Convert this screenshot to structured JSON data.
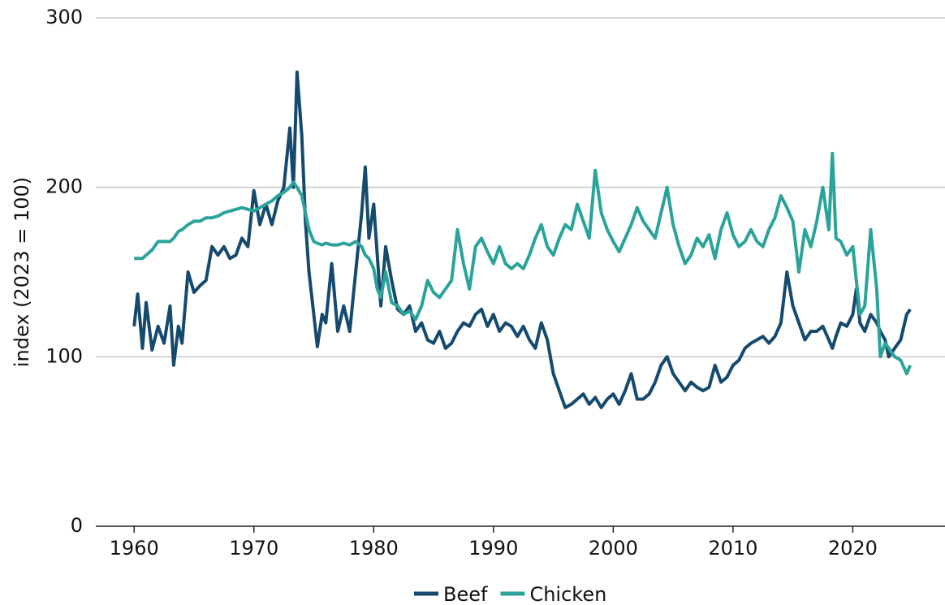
{
  "chart_data": {
    "type": "line",
    "y_label": "index (2023 = 100)",
    "x": [
      1960.0,
      1960.3,
      1960.7,
      1961.0,
      1961.5,
      1962.0,
      1962.5,
      1963.0,
      1963.3,
      1963.7,
      1964.0,
      1964.5,
      1965.0,
      1965.5,
      1966.0,
      1966.5,
      1967.0,
      1967.5,
      1968.0,
      1968.5,
      1969.0,
      1969.5,
      1970.0,
      1970.5,
      1971.0,
      1971.5,
      1972.0,
      1972.5,
      1973.0,
      1973.3,
      1973.6,
      1974.0,
      1974.3,
      1974.6,
      1975.0,
      1975.3,
      1975.7,
      1976.0,
      1976.5,
      1977.0,
      1977.5,
      1978.0,
      1978.5,
      1979.0,
      1979.3,
      1979.6,
      1980.0,
      1980.3,
      1980.6,
      1981.0,
      1981.5,
      1982.0,
      1982.5,
      1983.0,
      1983.5,
      1984.0,
      1984.5,
      1985.0,
      1985.5,
      1986.0,
      1986.5,
      1987.0,
      1987.5,
      1988.0,
      1988.5,
      1989.0,
      1989.5,
      1990.0,
      1990.5,
      1991.0,
      1991.5,
      1992.0,
      1992.5,
      1993.0,
      1993.5,
      1994.0,
      1994.5,
      1995.0,
      1995.5,
      1996.0,
      1996.5,
      1997.0,
      1997.5,
      1998.0,
      1998.5,
      1999.0,
      1999.5,
      2000.0,
      2000.5,
      2001.0,
      2001.5,
      2002.0,
      2002.5,
      2003.0,
      2003.5,
      2004.0,
      2004.5,
      2005.0,
      2005.5,
      2006.0,
      2006.5,
      2007.0,
      2007.5,
      2008.0,
      2008.5,
      2009.0,
      2009.5,
      2010.0,
      2010.5,
      2011.0,
      2011.5,
      2012.0,
      2012.5,
      2013.0,
      2013.5,
      2014.0,
      2014.5,
      2015.0,
      2015.5,
      2016.0,
      2016.5,
      2017.0,
      2017.5,
      2018.0,
      2018.3,
      2018.6,
      2019.0,
      2019.5,
      2020.0,
      2020.3,
      2020.6,
      2021.0,
      2021.5,
      2022.0,
      2022.3,
      2022.7,
      2023.0,
      2023.5,
      2024.0,
      2024.5,
      2024.8
    ],
    "series": [
      {
        "name": "Beef",
        "color": "#154a6e",
        "values": [
          118,
          137,
          105,
          132,
          104,
          118,
          108,
          130,
          95,
          118,
          108,
          150,
          138,
          142,
          145,
          165,
          160,
          165,
          158,
          160,
          170,
          165,
          198,
          178,
          190,
          178,
          192,
          200,
          235,
          200,
          268,
          230,
          180,
          150,
          125,
          106,
          125,
          120,
          155,
          115,
          130,
          115,
          150,
          185,
          212,
          170,
          190,
          160,
          130,
          165,
          145,
          128,
          125,
          130,
          115,
          120,
          110,
          108,
          115,
          105,
          108,
          115,
          120,
          118,
          125,
          128,
          118,
          125,
          115,
          120,
          118,
          112,
          118,
          110,
          105,
          120,
          110,
          90,
          80,
          70,
          72,
          75,
          78,
          72,
          76,
          70,
          75,
          78,
          72,
          80,
          90,
          75,
          75,
          78,
          85,
          95,
          100,
          90,
          85,
          80,
          85,
          82,
          80,
          82,
          95,
          85,
          88,
          95,
          98,
          105,
          108,
          110,
          112,
          108,
          112,
          120,
          150,
          130,
          120,
          110,
          115,
          115,
          118,
          110,
          105,
          112,
          120,
          118,
          125,
          140,
          120,
          115,
          125,
          120,
          115,
          110,
          100,
          105,
          110,
          125,
          128
        ]
      },
      {
        "name": "Chicken",
        "color": "#2ba39a",
        "values": [
          158,
          158,
          158,
          160,
          163,
          168,
          168,
          168,
          170,
          174,
          175,
          178,
          180,
          180,
          182,
          182,
          183,
          185,
          186,
          187,
          188,
          187,
          186,
          188,
          190,
          192,
          195,
          197,
          200,
          203,
          200,
          195,
          185,
          175,
          168,
          167,
          166,
          167,
          166,
          166,
          167,
          166,
          168,
          165,
          160,
          158,
          152,
          140,
          135,
          150,
          132,
          130,
          125,
          127,
          122,
          130,
          145,
          138,
          135,
          140,
          145,
          175,
          155,
          140,
          165,
          170,
          162,
          155,
          165,
          155,
          152,
          155,
          152,
          160,
          170,
          178,
          165,
          160,
          170,
          178,
          175,
          190,
          180,
          170,
          210,
          185,
          175,
          168,
          162,
          170,
          178,
          188,
          180,
          175,
          170,
          185,
          200,
          178,
          165,
          155,
          160,
          170,
          165,
          172,
          158,
          175,
          185,
          172,
          165,
          168,
          175,
          168,
          165,
          175,
          182,
          195,
          188,
          180,
          150,
          175,
          165,
          180,
          200,
          175,
          220,
          170,
          168,
          160,
          165,
          145,
          125,
          130,
          175,
          140,
          100,
          108,
          105,
          100,
          98,
          90,
          95
        ]
      }
    ],
    "xlim": [
      1956.8,
      2027.7
    ],
    "ylim": [
      0,
      300
    ],
    "xticks": [
      1960,
      1970,
      1980,
      1990,
      2000,
      2010,
      2020
    ],
    "yticks": [
      0,
      100,
      200,
      300
    ],
    "grid": true,
    "legend": "bottom"
  }
}
